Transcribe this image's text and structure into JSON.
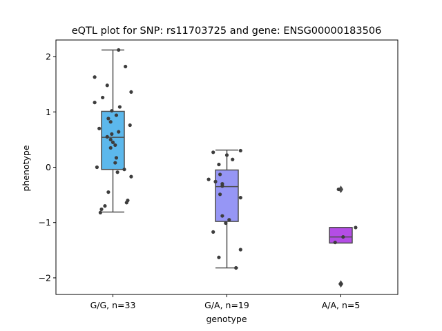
{
  "chart_data": {
    "type": "box",
    "title": "eQTL plot for SNP: rs11703725 and gene: ENSG00000183506",
    "xlabel": "genotype",
    "ylabel": "phenotype",
    "ylim": [
      -2.3,
      2.3
    ],
    "yticks": [
      -2,
      -1,
      0,
      1,
      2
    ],
    "ytick_labels": [
      "−2",
      "−1",
      "0",
      "1",
      "2"
    ],
    "grid": false,
    "legend": "none",
    "categories": [
      "G/G, n=33",
      "G/A, n=19",
      "A/A, n=5"
    ],
    "boxes": [
      {
        "q1": -0.04,
        "median": 0.54,
        "q3": 1.01,
        "whisker_low": -0.81,
        "whisker_high": 2.12,
        "outliers": [],
        "color": "#5cb8ec"
      },
      {
        "q1": -0.98,
        "median": -0.35,
        "q3": -0.05,
        "whisker_low": -1.82,
        "whisker_high": 0.31,
        "outliers": [],
        "color": "#9696f5"
      },
      {
        "q1": -1.37,
        "median": -1.26,
        "q3": -1.09,
        "whisker_low": -1.37,
        "whisker_high": -1.09,
        "outliers": [
          -0.4,
          -2.11
        ],
        "color": "#b44de6"
      }
    ],
    "points": [
      {
        "category": 0,
        "offset": 0.05,
        "y": 2.12
      },
      {
        "category": 0,
        "offset": 0.11,
        "y": 1.82
      },
      {
        "category": 0,
        "offset": -0.16,
        "y": 1.63
      },
      {
        "category": 0,
        "offset": -0.05,
        "y": 1.48
      },
      {
        "category": 0,
        "offset": 0.16,
        "y": 1.36
      },
      {
        "category": 0,
        "offset": -0.09,
        "y": 1.26
      },
      {
        "category": 0,
        "offset": -0.16,
        "y": 1.17
      },
      {
        "category": 0,
        "offset": 0.06,
        "y": 1.09
      },
      {
        "category": 0,
        "offset": -0.01,
        "y": 1.02
      },
      {
        "category": 0,
        "offset": 0.03,
        "y": 0.94
      },
      {
        "category": 0,
        "offset": -0.04,
        "y": 0.88
      },
      {
        "category": 0,
        "offset": -0.02,
        "y": 0.82
      },
      {
        "category": 0,
        "offset": 0.15,
        "y": 0.76
      },
      {
        "category": 0,
        "offset": -0.12,
        "y": 0.7
      },
      {
        "category": 0,
        "offset": 0.05,
        "y": 0.64
      },
      {
        "category": 0,
        "offset": -0.01,
        "y": 0.6
      },
      {
        "category": 0,
        "offset": -0.05,
        "y": 0.55
      },
      {
        "category": 0,
        "offset": -0.02,
        "y": 0.5
      },
      {
        "category": 0,
        "offset": 0.0,
        "y": 0.45
      },
      {
        "category": 0,
        "offset": 0.02,
        "y": 0.4
      },
      {
        "category": 0,
        "offset": -0.02,
        "y": 0.35
      },
      {
        "category": 0,
        "offset": 0.03,
        "y": 0.17
      },
      {
        "category": 0,
        "offset": 0.02,
        "y": 0.08
      },
      {
        "category": 0,
        "offset": -0.14,
        "y": 0.0
      },
      {
        "category": 0,
        "offset": 0.1,
        "y": -0.04
      },
      {
        "category": 0,
        "offset": 0.04,
        "y": -0.09
      },
      {
        "category": 0,
        "offset": 0.16,
        "y": -0.17
      },
      {
        "category": 0,
        "offset": -0.04,
        "y": -0.45
      },
      {
        "category": 0,
        "offset": 0.13,
        "y": -0.6
      },
      {
        "category": 0,
        "offset": 0.12,
        "y": -0.64
      },
      {
        "category": 0,
        "offset": -0.07,
        "y": -0.7
      },
      {
        "category": 0,
        "offset": -0.1,
        "y": -0.76
      },
      {
        "category": 0,
        "offset": -0.11,
        "y": -0.82
      },
      {
        "category": 1,
        "offset": 0.12,
        "y": 0.3
      },
      {
        "category": 1,
        "offset": -0.12,
        "y": 0.27
      },
      {
        "category": 1,
        "offset": 0.0,
        "y": 0.22
      },
      {
        "category": 1,
        "offset": 0.05,
        "y": 0.14
      },
      {
        "category": 1,
        "offset": -0.07,
        "y": 0.05
      },
      {
        "category": 1,
        "offset": -0.06,
        "y": -0.13
      },
      {
        "category": 1,
        "offset": -0.16,
        "y": -0.22
      },
      {
        "category": 1,
        "offset": -0.1,
        "y": -0.26
      },
      {
        "category": 1,
        "offset": -0.04,
        "y": -0.3
      },
      {
        "category": 1,
        "offset": -0.04,
        "y": -0.34
      },
      {
        "category": 1,
        "offset": -0.06,
        "y": -0.49
      },
      {
        "category": 1,
        "offset": 0.12,
        "y": -0.55
      },
      {
        "category": 1,
        "offset": -0.04,
        "y": -0.88
      },
      {
        "category": 1,
        "offset": 0.02,
        "y": -0.95
      },
      {
        "category": 1,
        "offset": -0.01,
        "y": -1.01
      },
      {
        "category": 1,
        "offset": -0.12,
        "y": -1.17
      },
      {
        "category": 1,
        "offset": 0.12,
        "y": -1.49
      },
      {
        "category": 1,
        "offset": -0.07,
        "y": -1.63
      },
      {
        "category": 1,
        "offset": 0.08,
        "y": -1.82
      },
      {
        "category": 2,
        "offset": -0.02,
        "y": -0.4
      },
      {
        "category": 2,
        "offset": 0.13,
        "y": -1.09
      },
      {
        "category": 2,
        "offset": 0.02,
        "y": -1.26
      },
      {
        "category": 2,
        "offset": -0.05,
        "y": -1.36
      },
      {
        "category": 2,
        "offset": 0.0,
        "y": -2.11
      }
    ]
  }
}
